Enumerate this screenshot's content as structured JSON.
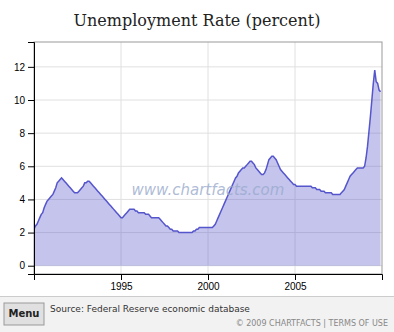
{
  "chart_data": {
    "type": "area",
    "title": "Unemployment Rate (percent)",
    "annotations": [
      "www.chartfacts.com",
      "Menu",
      "Source: Federal Reserve economic database",
      "© 2009 CHARTFACTS | TERMS OF USE"
    ],
    "color": "#5555cc",
    "grid": true,
    "xlim": [
      1990.0,
      2010.0
    ],
    "xticks": [
      1995,
      2000,
      2005
    ],
    "ylim": [
      -0.5,
      13.5
    ],
    "yticks": [
      0,
      2,
      4,
      6,
      8,
      10,
      12
    ],
    "x": [
      1990,
      1990.0833333333333,
      1990.1666666666667,
      1990.25,
      1990.3333333333333,
      1990.4166666666667,
      1990.5,
      1990.5833333333333,
      1990.6666666666667,
      1990.75,
      1990.8333333333333,
      1990.9166666666667,
      1991,
      1991.0833333333333,
      1991.1666666666667,
      1991.25,
      1991.3333333333333,
      1991.4166666666667,
      1991.5,
      1991.5833333333333,
      1991.6666666666667,
      1991.75,
      1991.8333333333333,
      1991.9166666666667,
      1992,
      1992.0833333333333,
      1992.1666666666667,
      1992.25,
      1992.3333333333333,
      1992.4166666666667,
      1992.5,
      1992.5833333333333,
      1992.6666666666667,
      1992.75,
      1992.8333333333333,
      1992.9166666666667,
      1993,
      1993.0833333333333,
      1993.1666666666667,
      1993.25,
      1993.3333333333333,
      1993.4166666666667,
      1993.5,
      1993.5833333333333,
      1993.6666666666667,
      1993.75,
      1993.8333333333333,
      1993.9166666666667,
      1994,
      1994.0833333333333,
      1994.1666666666667,
      1994.25,
      1994.3333333333333,
      1994.4166666666667,
      1994.5,
      1994.5833333333333,
      1994.6666666666667,
      1994.75,
      1994.8333333333333,
      1994.9166666666667,
      1995,
      1995.0833333333333,
      1995.1666666666667,
      1995.25,
      1995.3333333333333,
      1995.4166666666667,
      1995.5,
      1995.5833333333333,
      1995.6666666666667,
      1995.75,
      1995.8333333333333,
      1995.9166666666667,
      1996,
      1996.0833333333333,
      1996.1666666666667,
      1996.25,
      1996.3333333333333,
      1996.4166666666667,
      1996.5,
      1996.5833333333333,
      1996.6666666666667,
      1996.75,
      1996.8333333333333,
      1996.9166666666667,
      1997,
      1997.0833333333333,
      1997.1666666666667,
      1997.25,
      1997.3333333333333,
      1997.4166666666667,
      1997.5,
      1997.5833333333333,
      1997.6666666666667,
      1997.75,
      1997.8333333333333,
      1997.9166666666667,
      1998,
      1998.0833333333333,
      1998.1666666666667,
      1998.25,
      1998.3333333333333,
      1998.4166666666667,
      1998.5,
      1998.5833333333333,
      1998.6666666666667,
      1998.75,
      1998.8333333333333,
      1998.9166666666667,
      1999,
      1999.0833333333333,
      1999.1666666666667,
      1999.25,
      1999.3333333333333,
      1999.4166666666667,
      1999.5,
      1999.5833333333333,
      1999.6666666666667,
      1999.75,
      1999.8333333333333,
      1999.9166666666667,
      2000,
      2000.0833333333333,
      2000.1666666666667,
      2000.25,
      2000.3333333333333,
      2000.4166666666667,
      2000.5,
      2000.5833333333333,
      2000.6666666666667,
      2000.75,
      2000.8333333333333,
      2000.9166666666667,
      2001,
      2001.0833333333333,
      2001.1666666666667,
      2001.25,
      2001.3333333333333,
      2001.4166666666667,
      2001.5,
      2001.5833333333333,
      2001.6666666666667,
      2001.75,
      2001.8333333333333,
      2001.9166666666667,
      2002,
      2002.0833333333333,
      2002.1666666666667,
      2002.25,
      2002.3333333333333,
      2002.4166666666667,
      2002.5,
      2002.5833333333333,
      2002.6666666666667,
      2002.75,
      2002.8333333333333,
      2002.9166666666667,
      2003,
      2003.0833333333333,
      2003.1666666666667,
      2003.25,
      2003.3333333333333,
      2003.4166666666667,
      2003.5,
      2003.5833333333333,
      2003.6666666666667,
      2003.75,
      2003.8333333333333,
      2003.9166666666667,
      2004,
      2004.0833333333333,
      2004.1666666666667,
      2004.25,
      2004.3333333333333,
      2004.4166666666667,
      2004.5,
      2004.5833333333333,
      2004.6666666666667,
      2004.75,
      2004.8333333333333,
      2004.9166666666667,
      2005,
      2005.0833333333333,
      2005.1666666666667,
      2005.25,
      2005.3333333333333,
      2005.4166666666667,
      2005.5,
      2005.5833333333333,
      2005.6666666666667,
      2005.75,
      2005.8333333333333,
      2005.9166666666667,
      2006,
      2006.0833333333333,
      2006.1666666666667,
      2006.25,
      2006.3333333333333,
      2006.4166666666667,
      2006.5,
      2006.5833333333333,
      2006.6666666666667,
      2006.75,
      2006.8333333333333,
      2006.9166666666667,
      2007,
      2007.0833333333333,
      2007.1666666666667,
      2007.25,
      2007.3333333333333,
      2007.4166666666667,
      2007.5,
      2007.5833333333333,
      2007.6666666666667,
      2007.75,
      2007.8333333333333,
      2007.9166666666667,
      2008,
      2008.0833333333333,
      2008.1666666666667,
      2008.25,
      2008.3333333333333,
      2008.4166666666667,
      2008.5,
      2008.5833333333333,
      2008.6666666666667,
      2008.75,
      2008.8333333333333,
      2008.9166666666667,
      2009,
      2009.0833333333333,
      2009.1666666666667,
      2009.25,
      2009.3333333333333,
      2009.4166666666667,
      2009.5,
      2009.5833333333333,
      2009.6666666666667,
      2009.75,
      2009.8333333333333,
      2009.9166666666667
    ],
    "values": [
      2.2,
      2.4,
      2.5,
      2.7,
      2.9,
      3.1,
      3.2,
      3.5,
      3.7,
      3.9,
      4.0,
      4.1,
      4.2,
      4.3,
      4.5,
      4.7,
      5.0,
      5.1,
      5.2,
      5.3,
      5.2,
      5.1,
      5.0,
      4.9,
      4.8,
      4.7,
      4.6,
      4.5,
      4.4,
      4.4,
      4.4,
      4.5,
      4.6,
      4.7,
      4.8,
      5.0,
      5.0,
      5.1,
      5.1,
      5.0,
      4.9,
      4.8,
      4.7,
      4.6,
      4.5,
      4.4,
      4.3,
      4.2,
      4.1,
      4.0,
      3.9,
      3.8,
      3.7,
      3.6,
      3.5,
      3.4,
      3.3,
      3.2,
      3.1,
      3.0,
      2.9,
      2.9,
      3.0,
      3.1,
      3.2,
      3.3,
      3.4,
      3.4,
      3.4,
      3.4,
      3.3,
      3.3,
      3.2,
      3.2,
      3.2,
      3.2,
      3.2,
      3.1,
      3.1,
      3.1,
      3.0,
      2.9,
      2.9,
      2.9,
      2.9,
      2.9,
      2.9,
      2.8,
      2.7,
      2.6,
      2.5,
      2.4,
      2.4,
      2.3,
      2.2,
      2.2,
      2.1,
      2.1,
      2.1,
      2.1,
      2.0,
      2.0,
      2.0,
      2.0,
      2.0,
      2.0,
      2.0,
      2.0,
      2.0,
      2.0,
      2.1,
      2.1,
      2.2,
      2.2,
      2.3,
      2.3,
      2.3,
      2.3,
      2.3,
      2.3,
      2.3,
      2.3,
      2.3,
      2.3,
      2.4,
      2.5,
      2.7,
      2.9,
      3.1,
      3.3,
      3.5,
      3.7,
      3.9,
      4.1,
      4.3,
      4.5,
      4.7,
      4.9,
      5.1,
      5.3,
      5.4,
      5.6,
      5.7,
      5.8,
      5.9,
      5.9,
      6.0,
      6.1,
      6.2,
      6.3,
      6.3,
      6.2,
      6.1,
      5.9,
      5.8,
      5.7,
      5.6,
      5.5,
      5.5,
      5.6,
      5.8,
      6.1,
      6.4,
      6.5,
      6.6,
      6.6,
      6.5,
      6.4,
      6.2,
      6.0,
      5.8,
      5.7,
      5.6,
      5.5,
      5.4,
      5.3,
      5.2,
      5.1,
      5.0,
      4.9,
      4.9,
      4.8,
      4.8,
      4.8,
      4.8,
      4.8,
      4.8,
      4.8,
      4.8,
      4.8,
      4.8,
      4.8,
      4.7,
      4.7,
      4.7,
      4.6,
      4.6,
      4.6,
      4.5,
      4.5,
      4.5,
      4.4,
      4.4,
      4.4,
      4.4,
      4.4,
      4.3,
      4.3,
      4.3,
      4.3,
      4.3,
      4.3,
      4.4,
      4.5,
      4.6,
      4.8,
      5.0,
      5.2,
      5.4,
      5.5,
      5.6,
      5.7,
      5.8,
      5.9,
      5.9,
      5.9,
      5.9,
      5.9,
      6.0,
      6.5,
      7.2,
      8.1,
      9.0,
      10.0,
      11.0,
      11.8,
      11.1,
      11.0,
      10.6,
      10.5
    ]
  }
}
